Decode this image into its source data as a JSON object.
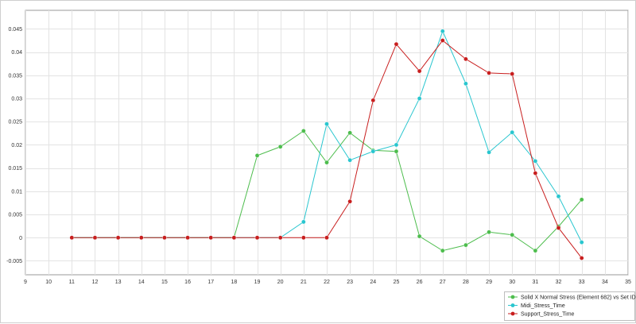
{
  "chart_data": {
    "type": "line",
    "title": "",
    "xlabel": "",
    "ylabel": "",
    "xlim": [
      9,
      35
    ],
    "ylim": [
      -0.008,
      0.049
    ],
    "x_ticks": [
      9,
      10,
      11,
      12,
      13,
      14,
      15,
      16,
      17,
      18,
      19,
      20,
      21,
      22,
      23,
      24,
      25,
      26,
      27,
      28,
      29,
      30,
      31,
      32,
      33,
      34,
      35
    ],
    "y_ticks": [
      -0.005,
      0,
      0.005,
      0.01,
      0.015,
      0.02,
      0.025,
      0.03,
      0.035,
      0.04,
      0.045
    ],
    "y_tick_labels": [
      "-0.005",
      "0",
      "0.005",
      "0.01",
      "0.015",
      "0.02",
      "0.025",
      "0.03",
      "0.035",
      "0.04",
      "0.045"
    ],
    "grid": true,
    "legend_position": "bottom-right",
    "series": [
      {
        "name": "Solid X Normal Stress (Element 682) vs Set ID",
        "color": "#4dbd4d",
        "x": [
          11,
          12,
          13,
          14,
          15,
          16,
          17,
          18,
          19,
          20,
          21,
          22,
          23,
          24,
          25,
          26,
          27,
          28,
          29,
          30,
          31,
          32,
          33
        ],
        "values": [
          0,
          0,
          0,
          0,
          0,
          0,
          0,
          0,
          0.0177,
          0.0196,
          0.023,
          0.0162,
          0.0226,
          0.0188,
          0.0186,
          0.0003,
          -0.0028,
          -0.0016,
          0.0012,
          0.0006,
          -0.0028,
          0.0024,
          0.0082
        ]
      },
      {
        "name": "Midi_Stress_Time",
        "color": "#29c6cf",
        "x": [
          11,
          12,
          13,
          14,
          15,
          16,
          17,
          18,
          19,
          20,
          21,
          22,
          23,
          24,
          25,
          26,
          27,
          28,
          29,
          30,
          31,
          32,
          33
        ],
        "values": [
          0,
          0,
          0,
          0,
          0,
          0,
          0,
          0,
          0,
          0,
          0.0034,
          0.0245,
          0.0167,
          0.0186,
          0.02,
          0.03,
          0.0445,
          0.0332,
          0.0184,
          0.0227,
          0.0165,
          0.0089,
          -0.001
        ]
      },
      {
        "name": "Support_Stress_Time",
        "color": "#c81e1e",
        "x": [
          11,
          12,
          13,
          14,
          15,
          16,
          17,
          18,
          19,
          20,
          21,
          22,
          23,
          24,
          25,
          26,
          27,
          28,
          29,
          30,
          31,
          32,
          33
        ],
        "values": [
          0,
          0,
          0,
          0,
          0,
          0,
          0,
          0,
          0,
          0,
          0,
          0,
          0.0078,
          0.0296,
          0.0417,
          0.0359,
          0.0425,
          0.0385,
          0.0355,
          0.0353,
          0.0139,
          0.0021,
          -0.0044
        ]
      }
    ]
  }
}
